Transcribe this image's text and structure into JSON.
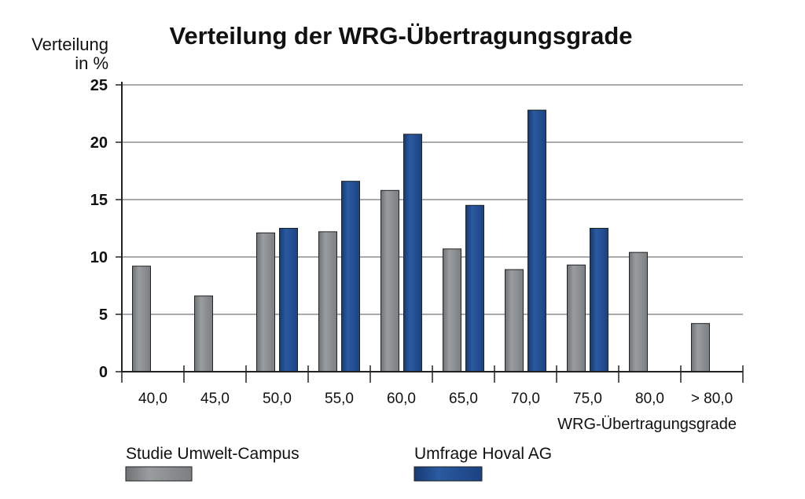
{
  "chart_data": {
    "type": "bar",
    "title": "Verteilung der WRG-Übertragungsgrade",
    "ylabel_line1": "Verteilung",
    "ylabel_line2": "in %",
    "xlabel": "WRG-Übertragungsgrade",
    "ylim": [
      0,
      25
    ],
    "yticks": [
      "0",
      "5",
      "10",
      "15",
      "20",
      "25"
    ],
    "grid": true,
    "categories": [
      "40,0",
      "45,0",
      "50,0",
      "55,0",
      "60,0",
      "65,0",
      "70,0",
      "75,0",
      "80,0",
      "> 80,0"
    ],
    "series": [
      {
        "name": "Studie Umwelt-Campus",
        "color": "#8a8d8f",
        "values": [
          9.2,
          6.6,
          12.1,
          12.2,
          15.8,
          10.7,
          8.9,
          9.3,
          10.4,
          4.2
        ]
      },
      {
        "name": "Umfrage Hoval AG",
        "color": "#1f4a8c",
        "values": [
          null,
          null,
          12.5,
          16.6,
          20.7,
          14.5,
          22.8,
          12.5,
          null,
          null
        ]
      }
    ],
    "legend_position": "bottom"
  }
}
